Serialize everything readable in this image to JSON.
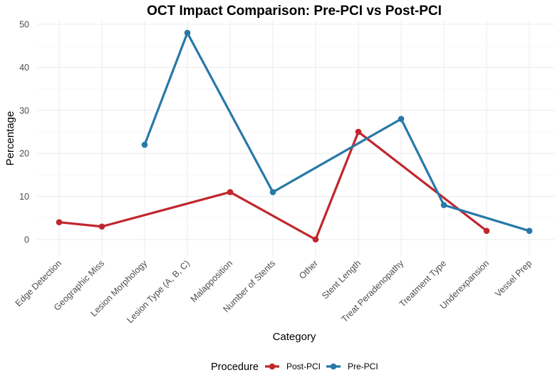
{
  "chart_data": {
    "type": "line",
    "title": "OCT Impact Comparison: Pre-PCI vs Post-PCI",
    "xlabel": "Category",
    "ylabel": "Percentage",
    "ylim": [
      -4,
      51
    ],
    "yticks": [
      0,
      10,
      20,
      30,
      40,
      50
    ],
    "categories": [
      "Edge Detection",
      "Geographic Miss",
      "Lesion Morphology",
      "Lesion Type (A, B, C)",
      "Malapposition",
      "Number of Stents",
      "Other",
      "Stent Length",
      "Treat Peradenopathy",
      "Treatment Type",
      "Underexpansion",
      "Vessel Prep"
    ],
    "series": [
      {
        "name": "Post-PCI",
        "color": "#c0272d",
        "values": [
          4,
          3,
          null,
          null,
          11,
          null,
          0,
          25,
          null,
          null,
          2,
          null
        ]
      },
      {
        "name": "Pre-PCI",
        "color": "#2878a8",
        "values": [
          null,
          null,
          22,
          48,
          null,
          11,
          null,
          null,
          28,
          8,
          null,
          2
        ]
      }
    ],
    "legend": {
      "title": "Procedure",
      "position": "bottom"
    }
  }
}
